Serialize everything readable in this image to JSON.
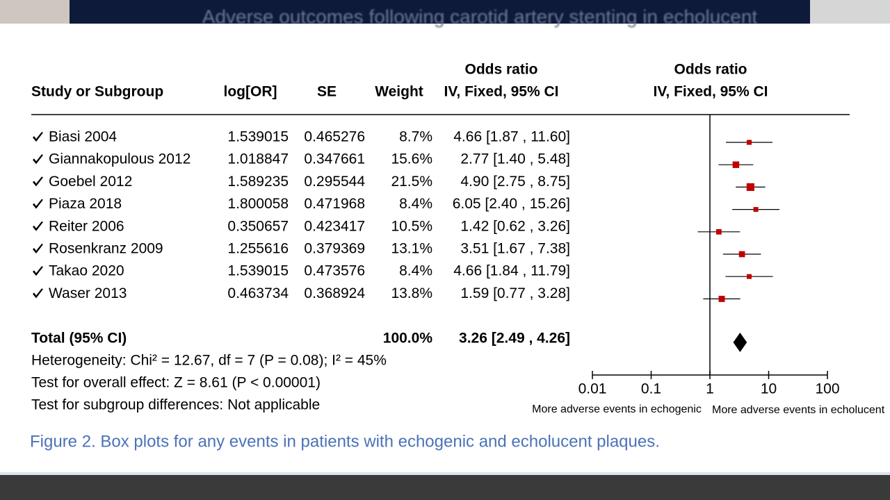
{
  "top_banner": "Adverse outcomes following carotid artery stenting in echolucent",
  "chart_data": {
    "type": "forest",
    "columns": [
      "Study or Subgroup",
      "log[OR]",
      "SE",
      "Weight"
    ],
    "or_header": [
      "Odds ratio",
      "IV, Fixed, 95% CI"
    ],
    "plot_header": [
      "Odds ratio",
      "IV, Fixed, 95% CI"
    ],
    "rows": [
      [
        "Biasi 2004",
        "1.539015",
        "0.465276",
        "8.7%",
        "4.66 [1.87 , 11.60]"
      ],
      [
        "Giannakopulous 2012",
        "1.018847",
        "0.347661",
        "15.6%",
        "2.77 [1.40 , 5.48]"
      ],
      [
        "Goebel 2012",
        "1.589235",
        "0.295544",
        "21.5%",
        "4.90 [2.75 , 8.75]"
      ],
      [
        "Piaza 2018",
        "1.800058",
        "0.471968",
        "8.4%",
        "6.05 [2.40 , 15.26]"
      ],
      [
        "Reiter 2006",
        "0.350657",
        "0.423417",
        "10.5%",
        "1.42 [0.62 , 3.26]"
      ],
      [
        "Rosenkranz 2009",
        "1.255616",
        "0.379369",
        "13.1%",
        "3.51 [1.67 , 7.38]"
      ],
      [
        "Takao 2020",
        "1.539015",
        "0.473576",
        "8.4%",
        "4.66 [1.84 , 11.79]"
      ],
      [
        "Waser 2013",
        "0.463734",
        "0.368924",
        "13.8%",
        "1.59 [0.77 , 3.28]"
      ]
    ],
    "values": [
      4.66,
      2.77,
      4.9,
      6.05,
      1.42,
      3.51,
      4.66,
      1.59
    ],
    "ci_low": [
      1.87,
      1.4,
      2.75,
      2.4,
      0.62,
      1.67,
      1.84,
      0.77
    ],
    "ci_high": [
      11.6,
      5.48,
      8.75,
      15.26,
      3.26,
      7.38,
      11.79,
      3.28
    ],
    "weights": [
      8.7,
      15.6,
      21.5,
      8.4,
      10.5,
      13.1,
      8.4,
      13.8
    ],
    "color": "#c00000",
    "total": {
      "label": "Total (95% CI)",
      "weight": "100.0%",
      "ci": "3.26 [2.49 , 4.26]",
      "value": 3.26,
      "ci_low": 2.49,
      "ci_high": 4.26
    },
    "stats": [
      "Heterogeneity: Chi² = 12.67, df = 7 (P = 0.08); I² = 45%",
      "Test for overall effect: Z = 8.61 (P < 0.00001)",
      "Test for subgroup differences: Not applicable"
    ],
    "log_x": true,
    "xlim": [
      0.01,
      100
    ],
    "xticks": [
      0.01,
      0.1,
      1,
      10,
      100
    ],
    "xlabels": [
      "More adverse events in echogenic",
      "More adverse events in echolucent"
    ]
  },
  "caption": "Figure 2. Box plots for any events in patients with echogenic and echolucent plaques."
}
